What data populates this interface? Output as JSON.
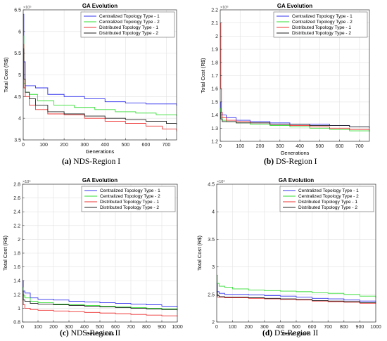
{
  "panels": [
    {
      "caption_letter": "(a)",
      "caption_text": "NDS-Region I",
      "exponent_label": "×10⁵"
    },
    {
      "caption_letter": "(b)",
      "caption_text": "DS-Region I",
      "exponent_label": "×10⁶"
    },
    {
      "caption_letter": "(c)",
      "caption_text": "NDS-Region II",
      "exponent_label": "×10⁶"
    },
    {
      "caption_letter": "(d)",
      "caption_text": "DS-Region II",
      "exponent_label": "×10⁶"
    }
  ],
  "series_colors": [
    "#3333ee",
    "#33dd33",
    "#ee3333",
    "#222222"
  ],
  "chart_data": [
    {
      "type": "line",
      "title": "GA Evolution",
      "xlabel": "Generations",
      "ylabel": "Total Cost (R$)",
      "xlim": [
        0,
        750
      ],
      "ylim": [
        3.5,
        6.5
      ],
      "xticks": [
        0,
        100,
        200,
        300,
        400,
        500,
        600,
        700
      ],
      "yticks": [
        3.5,
        4,
        4.5,
        5,
        5.5,
        6,
        6.5
      ],
      "grid": true,
      "legend_position": "top-right",
      "series": [
        {
          "name": "Centralized Topology Type - 1",
          "x": [
            0,
            3,
            10,
            30,
            60,
            120,
            200,
            300,
            400,
            500,
            600,
            750
          ],
          "y": [
            6.4,
            5.3,
            4.75,
            4.75,
            4.7,
            4.55,
            4.5,
            4.45,
            4.38,
            4.35,
            4.33,
            4.28
          ]
        },
        {
          "name": "Centralized Topology Type - 2",
          "x": [
            0,
            3,
            10,
            30,
            70,
            150,
            250,
            350,
            450,
            550,
            650,
            750
          ],
          "y": [
            5.9,
            4.8,
            4.6,
            4.55,
            4.4,
            4.3,
            4.25,
            4.2,
            4.15,
            4.12,
            4.08,
            4.05
          ]
        },
        {
          "name": "Distributed Topology  Type - 1",
          "x": [
            0,
            3,
            10,
            30,
            60,
            120,
            200,
            300,
            400,
            500,
            600,
            680,
            750
          ],
          "y": [
            5.7,
            4.7,
            4.5,
            4.3,
            4.2,
            4.1,
            4.08,
            4.0,
            3.93,
            3.88,
            3.82,
            3.75,
            3.7
          ]
        },
        {
          "name": "Distributed Topology  Type - 2",
          "x": [
            0,
            3,
            10,
            30,
            60,
            120,
            200,
            300,
            400,
            500,
            600,
            700,
            750
          ],
          "y": [
            5.6,
            4.9,
            4.6,
            4.45,
            4.3,
            4.15,
            4.1,
            4.05,
            4.0,
            3.97,
            3.93,
            3.88,
            3.85
          ]
        }
      ]
    },
    {
      "type": "line",
      "title": "GA Evolution",
      "xlabel": "Generations",
      "ylabel": "Total Cost (R$)",
      "xlim": [
        0,
        750
      ],
      "ylim": [
        1.2,
        2.2
      ],
      "xticks": [
        0,
        100,
        200,
        300,
        400,
        500,
        600,
        700
      ],
      "yticks": [
        1.2,
        1.3,
        1.4,
        1.5,
        1.6,
        1.7,
        1.8,
        1.9,
        2,
        2.1,
        2.2
      ],
      "grid": true,
      "legend_position": "top-right",
      "series": [
        {
          "name": "Centralized Topology Type - 1",
          "x": [
            0,
            3,
            10,
            30,
            80,
            150,
            250,
            350,
            450,
            550,
            650,
            750
          ],
          "y": [
            1.5,
            1.42,
            1.4,
            1.38,
            1.36,
            1.35,
            1.34,
            1.33,
            1.33,
            1.32,
            1.31,
            1.3
          ]
        },
        {
          "name": "Centralized Topology Type - 2",
          "x": [
            0,
            3,
            10,
            30,
            80,
            150,
            250,
            350,
            450,
            550,
            650,
            750
          ],
          "y": [
            1.45,
            1.38,
            1.36,
            1.35,
            1.34,
            1.33,
            1.32,
            1.31,
            1.3,
            1.29,
            1.28,
            1.27
          ]
        },
        {
          "name": "Distributed Topology  Type - 1",
          "x": [
            0,
            3,
            6,
            10,
            30,
            80,
            150,
            250,
            350,
            450,
            550,
            650,
            750
          ],
          "y": [
            2.1,
            1.6,
            1.42,
            1.38,
            1.36,
            1.35,
            1.34,
            1.33,
            1.32,
            1.31,
            1.3,
            1.29,
            1.28
          ]
        },
        {
          "name": "Distributed Topology  Type - 2",
          "x": [
            0,
            3,
            10,
            30,
            80,
            150,
            250,
            350,
            450,
            550,
            650,
            750
          ],
          "y": [
            1.42,
            1.37,
            1.35,
            1.35,
            1.34,
            1.34,
            1.33,
            1.33,
            1.32,
            1.32,
            1.31,
            1.31
          ]
        }
      ]
    },
    {
      "type": "line",
      "title": "GA Evolution",
      "xlabel": "Generations",
      "ylabel": "Total Cost (R$)",
      "xlim": [
        0,
        1000
      ],
      "ylim": [
        0.8,
        2.8
      ],
      "xticks": [
        0,
        100,
        200,
        300,
        400,
        500,
        600,
        700,
        800,
        900,
        1000
      ],
      "yticks": [
        0.8,
        1,
        1.2,
        1.4,
        1.6,
        1.8,
        2,
        2.2,
        2.4,
        2.6,
        2.8
      ],
      "grid": true,
      "legend_position": "top-right",
      "series": [
        {
          "name": "Centralized Topology Type - 1",
          "x": [
            0,
            5,
            15,
            50,
            100,
            200,
            300,
            400,
            500,
            600,
            700,
            800,
            900,
            1000
          ],
          "y": [
            1.4,
            1.25,
            1.22,
            1.15,
            1.13,
            1.12,
            1.1,
            1.09,
            1.08,
            1.07,
            1.06,
            1.05,
            1.03,
            1.02
          ]
        },
        {
          "name": "Centralized Topology Type - 2",
          "x": [
            0,
            5,
            15,
            50,
            100,
            200,
            300,
            400,
            500,
            600,
            700,
            800,
            900,
            1000
          ],
          "y": [
            1.3,
            1.18,
            1.15,
            1.1,
            1.08,
            1.06,
            1.05,
            1.04,
            1.03,
            1.02,
            1.01,
            1.0,
            0.99,
            0.98
          ]
        },
        {
          "name": "Distributed Topology  Type - 1",
          "x": [
            0,
            5,
            15,
            50,
            100,
            200,
            300,
            400,
            500,
            600,
            700,
            800,
            900,
            1000
          ],
          "y": [
            1.2,
            1.05,
            1.0,
            0.98,
            0.97,
            0.96,
            0.95,
            0.94,
            0.93,
            0.92,
            0.91,
            0.9,
            0.89,
            0.88
          ]
        },
        {
          "name": "Distributed Topology  Type - 2",
          "x": [
            0,
            5,
            15,
            50,
            100,
            200,
            300,
            400,
            500,
            600,
            700,
            800,
            900,
            1000
          ],
          "y": [
            1.25,
            1.12,
            1.1,
            1.07,
            1.06,
            1.05,
            1.04,
            1.03,
            1.02,
            1.01,
            1.0,
            0.99,
            0.98,
            0.97
          ]
        }
      ]
    },
    {
      "type": "line",
      "title": "GA Evolution",
      "xlabel": "Generations",
      "ylabel": "Total Cost (R$)",
      "xlim": [
        0,
        1000
      ],
      "ylim": [
        2,
        4.5
      ],
      "xticks": [
        0,
        100,
        200,
        300,
        400,
        500,
        600,
        700,
        800,
        900,
        1000
      ],
      "yticks": [
        2,
        2.5,
        3,
        3.5,
        4,
        4.5
      ],
      "grid": true,
      "legend_position": "top-right",
      "series": [
        {
          "name": "Centralized Topology Type - 1",
          "x": [
            0,
            5,
            15,
            50,
            100,
            200,
            300,
            400,
            500,
            600,
            700,
            800,
            900,
            1000
          ],
          "y": [
            2.7,
            2.55,
            2.52,
            2.5,
            2.5,
            2.49,
            2.48,
            2.47,
            2.45,
            2.43,
            2.42,
            2.4,
            2.38,
            2.36
          ]
        },
        {
          "name": "Centralized Topology Type - 2",
          "x": [
            0,
            5,
            15,
            50,
            100,
            200,
            300,
            400,
            500,
            600,
            700,
            800,
            900,
            1000
          ],
          "y": [
            2.85,
            2.7,
            2.65,
            2.63,
            2.6,
            2.58,
            2.57,
            2.56,
            2.55,
            2.53,
            2.52,
            2.5,
            2.47,
            2.43
          ]
        },
        {
          "name": "Distributed Topology  Type - 1",
          "x": [
            0,
            5,
            15,
            50,
            100,
            200,
            300,
            400,
            500,
            600,
            700,
            800,
            900,
            1000
          ],
          "y": [
            2.5,
            2.45,
            2.45,
            2.44,
            2.44,
            2.43,
            2.42,
            2.41,
            2.4,
            2.38,
            2.37,
            2.36,
            2.34,
            2.33
          ]
        },
        {
          "name": "Distributed Topology  Type - 2",
          "x": [
            0,
            5,
            15,
            50,
            100,
            200,
            300,
            400,
            500,
            600,
            700,
            800,
            900,
            1000
          ],
          "y": [
            2.55,
            2.48,
            2.46,
            2.45,
            2.45,
            2.44,
            2.43,
            2.42,
            2.41,
            2.39,
            2.38,
            2.37,
            2.35,
            2.34
          ]
        }
      ]
    }
  ]
}
